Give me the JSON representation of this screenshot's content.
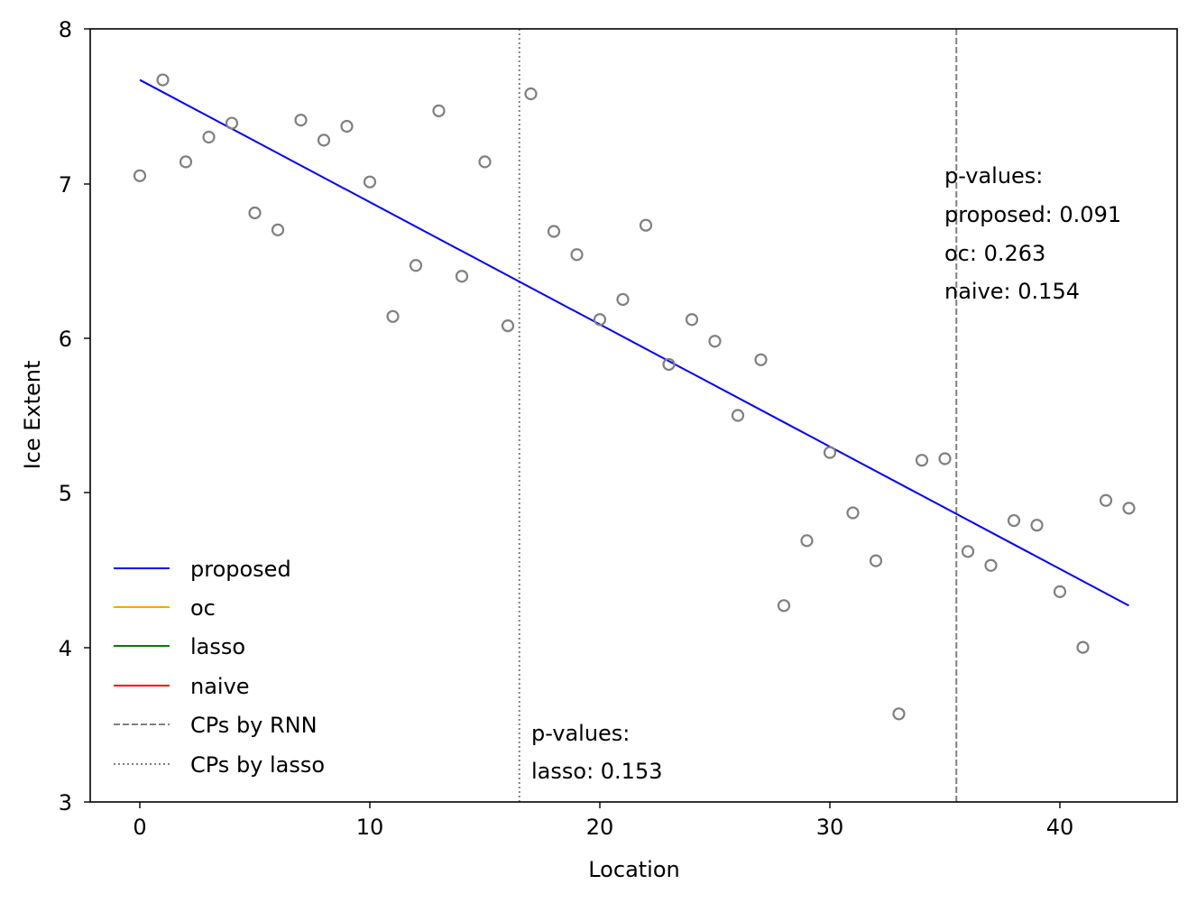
{
  "chart_data": {
    "type": "scatter",
    "title": "",
    "xlabel": "Location",
    "ylabel": "Ice Extent",
    "xlim": [
      -2.15,
      45.15
    ],
    "ylim": [
      3,
      8
    ],
    "xticks": [
      0,
      10,
      20,
      30,
      40
    ],
    "yticks": [
      3,
      4,
      5,
      6,
      7,
      8
    ],
    "grid": false,
    "legend_position": "lower left",
    "scatter": {
      "name": "observations",
      "marker": "open circle",
      "color": "#808080",
      "x": [
        0,
        1,
        2,
        3,
        4,
        5,
        6,
        7,
        8,
        9,
        10,
        11,
        12,
        13,
        14,
        15,
        16,
        17,
        18,
        19,
        20,
        21,
        22,
        23,
        24,
        25,
        26,
        27,
        28,
        29,
        30,
        31,
        32,
        33,
        34,
        35,
        36,
        37,
        38,
        39,
        40,
        41,
        42,
        43
      ],
      "y": [
        7.05,
        7.67,
        7.14,
        7.3,
        7.39,
        6.81,
        6.7,
        7.41,
        7.28,
        7.37,
        7.01,
        6.14,
        6.47,
        7.47,
        6.4,
        7.14,
        6.08,
        7.58,
        6.69,
        6.54,
        6.12,
        6.25,
        6.73,
        5.83,
        6.12,
        5.98,
        5.5,
        5.86,
        4.27,
        4.69,
        5.26,
        4.87,
        4.56,
        3.57,
        5.21,
        5.22,
        4.62,
        4.53,
        4.82,
        4.79,
        4.36,
        4.0,
        4.95,
        4.9
      ]
    },
    "series": [
      {
        "name": "proposed",
        "color": "#0000ff",
        "style": "solid",
        "x": [
          0,
          43
        ],
        "y": [
          7.67,
          4.27
        ]
      },
      {
        "name": "oc",
        "color": "#ffa500",
        "style": "solid",
        "x": [],
        "y": []
      },
      {
        "name": "lasso",
        "color": "#008000",
        "style": "solid",
        "x": [],
        "y": []
      },
      {
        "name": "naive",
        "color": "#ff0000",
        "style": "solid",
        "x": [],
        "y": []
      }
    ],
    "vlines": [
      {
        "name": "CPs by RNN",
        "x": 35.5,
        "color": "#808080",
        "style": "dashed"
      },
      {
        "name": "CPs by lasso",
        "x": 16.5,
        "color": "#808080",
        "style": "dotted"
      }
    ],
    "legend": [
      {
        "label": "proposed",
        "color": "#0000ff",
        "style": "solid"
      },
      {
        "label": "oc",
        "color": "#ffa500",
        "style": "solid"
      },
      {
        "label": "lasso",
        "color": "#008000",
        "style": "solid"
      },
      {
        "label": "naive",
        "color": "#ff0000",
        "style": "solid"
      },
      {
        "label": "CPs by RNN",
        "color": "#808080",
        "style": "dashed"
      },
      {
        "label": "CPs by lasso",
        "color": "#808080",
        "style": "dotted"
      }
    ],
    "annotations": [
      {
        "lines": [
          "p-values:",
          "proposed: 0.091",
          "oc: 0.263",
          "naive: 0.154"
        ],
        "x": 35.5,
        "y": 7.05
      },
      {
        "lines": [
          "p-values:",
          "lasso: 0.153"
        ],
        "x": 16.5,
        "y": 3.45
      }
    ]
  },
  "axes": {
    "xlabel": "Location",
    "ylabel": "Ice Extent",
    "xtick_labels": [
      "0",
      "10",
      "20",
      "30",
      "40"
    ],
    "ytick_labels": [
      "3",
      "4",
      "5",
      "6",
      "7",
      "8"
    ]
  },
  "legend": {
    "items": [
      "proposed",
      "oc",
      "lasso",
      "naive",
      "CPs by RNN",
      "CPs by lasso"
    ]
  },
  "annotations": {
    "rnn_box": {
      "line1": "p-values:",
      "line2": "proposed: 0.091",
      "line3": "oc: 0.263",
      "line4": "naive: 0.154"
    },
    "lasso_box": {
      "line1": "p-values:",
      "line2": "lasso: 0.153"
    }
  }
}
